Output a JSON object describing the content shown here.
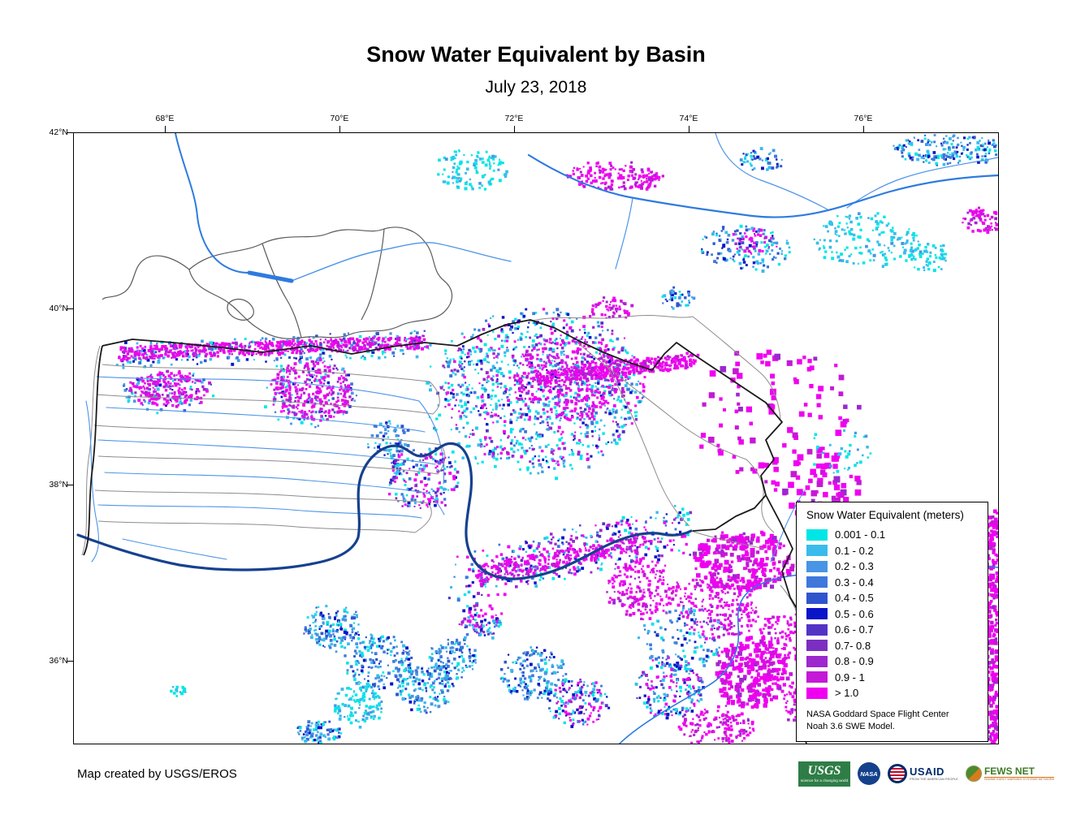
{
  "title": "Snow Water Equivalent by Basin",
  "subtitle": "July 23, 2018",
  "axes": {
    "top_ticks": [
      "68°E",
      "70°E",
      "72°E",
      "74°E",
      "76°E"
    ],
    "left_ticks": [
      "42°N",
      "40°N",
      "38°N",
      "36°N"
    ]
  },
  "legend": {
    "title": "Snow Water Equivalent (meters)",
    "items": [
      {
        "label": "0.001 - 0.1",
        "color": "#00E6E6"
      },
      {
        "label": "0.1 - 0.2",
        "color": "#39BCEC"
      },
      {
        "label": "0.2 - 0.3",
        "color": "#4795E4"
      },
      {
        "label": "0.3 - 0.4",
        "color": "#3E78DC"
      },
      {
        "label": "0.4 - 0.5",
        "color": "#2F55CE"
      },
      {
        "label": "0.5 - 0.6",
        "color": "#0A14C8"
      },
      {
        "label": "0.6 - 0.7",
        "color": "#5333C6"
      },
      {
        "label": "0.7- 0.8",
        "color": "#7C2EC0"
      },
      {
        "label": "0.8 - 0.9",
        "color": "#9C28CE"
      },
      {
        "label": "0.9 - 1",
        "color": "#C419D6"
      },
      {
        "label": "> 1.0",
        "color": "#F000F0"
      }
    ],
    "note_line1": "NASA Goddard Space Flight Center",
    "note_line2": "Noah 3.6 SWE Model."
  },
  "map": {
    "river_color": "#4D94E8",
    "main_river_color": "#2E7BE0",
    "dark_river_color": "#16418F",
    "basin_line_color": "#8C8C8C",
    "watershed_color": "#1A1A1A"
  },
  "footer": {
    "credit": "Map created by USGS/EROS",
    "logos": {
      "usgs": {
        "name": "USGS",
        "tagline": "science for a changing world"
      },
      "nasa": {
        "name": "NASA"
      },
      "usaid": {
        "name": "USAID",
        "tagline": "FROM THE AMERICAN PEOPLE"
      },
      "fewsnet": {
        "name": "FEWS NET",
        "tagline": "FAMINE EARLY WARNING SYSTEMS NETWORK"
      }
    }
  }
}
